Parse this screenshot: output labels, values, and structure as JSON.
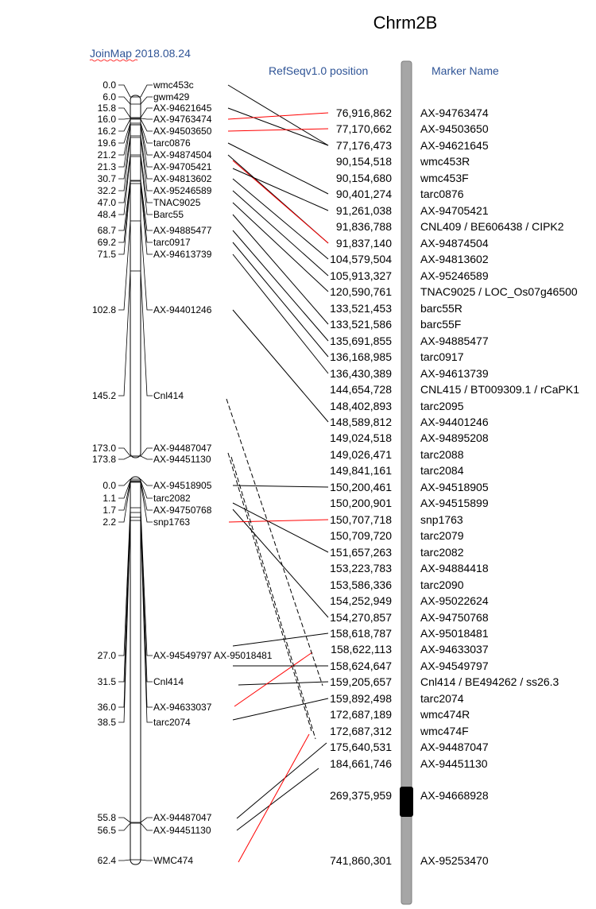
{
  "title": "Chrm2B",
  "joinmap_label": "JoinMap 2018.08.24",
  "col_refseq": "RefSeqv1.0 position",
  "col_marker": "Marker Name",
  "physical": [
    {
      "pos": "76,916,862",
      "name": "AX-94763474"
    },
    {
      "pos": "77,170,662",
      "name": "AX-94503650"
    },
    {
      "pos": "77,176,473",
      "name": "AX-94621645"
    },
    {
      "pos": "90,154,518",
      "name": "wmc453R"
    },
    {
      "pos": "90,154,680",
      "name": "wmc453F"
    },
    {
      "pos": "90,401,274",
      "name": "tarc0876"
    },
    {
      "pos": "91,261,038",
      "name": "AX-94705421"
    },
    {
      "pos": "91,836,788",
      "name": "CNL409 / BE606438 / CIPK2"
    },
    {
      "pos": "91,837,140",
      "name": "AX-94874504"
    },
    {
      "pos": "104,579,504",
      "name": "AX-94813602"
    },
    {
      "pos": "105,913,327",
      "name": "AX-95246589"
    },
    {
      "pos": "120,590,761",
      "name": "TNAC9025 / LOC_Os07g46500"
    },
    {
      "pos": "133,521,453",
      "name": "barc55R"
    },
    {
      "pos": "133,521,586",
      "name": "barc55F"
    },
    {
      "pos": "135,691,855",
      "name": "AX-94885477"
    },
    {
      "pos": "136,168,985",
      "name": "tarc0917"
    },
    {
      "pos": "136,430,389",
      "name": "AX-94613739"
    },
    {
      "pos": "144,654,728",
      "name": "CNL415 / BT009309.1 / rCaPK1"
    },
    {
      "pos": "148,402,893",
      "name": "tarc2095"
    },
    {
      "pos": "148,589,812",
      "name": "AX-94401246"
    },
    {
      "pos": "149,024,518",
      "name": "AX-94895208"
    },
    {
      "pos": "149,026,471",
      "name": "tarc2088"
    },
    {
      "pos": "149,841,161",
      "name": "tarc2084"
    },
    {
      "pos": "150,200,461",
      "name": "AX-94518905"
    },
    {
      "pos": "150,200,901",
      "name": "AX-94515899"
    },
    {
      "pos": "150,707,718",
      "name": "snp1763"
    },
    {
      "pos": "150,709,720",
      "name": "tarc2079"
    },
    {
      "pos": "151,657,263",
      "name": "tarc2082"
    },
    {
      "pos": "153,223,783",
      "name": "AX-94884418"
    },
    {
      "pos": "153,586,336",
      "name": "tarc2090"
    },
    {
      "pos": "154,252,949",
      "name": "AX-95022624"
    },
    {
      "pos": "154,270,857",
      "name": "AX-94750768"
    },
    {
      "pos": "158,618,787",
      "name": "AX-95018481"
    },
    {
      "pos": "158,622,113",
      "name": "AX-94633037"
    },
    {
      "pos": "158,624,647",
      "name": "AX-94549797"
    },
    {
      "pos": "159,205,657",
      "name": "Cnl414 / BE494262 / ss26.3"
    },
    {
      "pos": "159,892,498",
      "name": "tarc2074"
    },
    {
      "pos": "172,687,189",
      "name": "wmc474R"
    },
    {
      "pos": "172,687,312",
      "name": "wmc474F"
    },
    {
      "pos": "175,640,531",
      "name": "AX-94487047"
    },
    {
      "pos": "184,661,746",
      "name": "AX-94451130"
    },
    {
      "pos": "269,375,959",
      "name": "AX-94668928"
    },
    {
      "pos": "741,860,301",
      "name": "AX-95253470"
    }
  ],
  "genetic_upper": [
    {
      "cm": "0.0",
      "name": "wmc453c"
    },
    {
      "cm": "6.0",
      "name": "gwm429"
    },
    {
      "cm": "15.8",
      "name": "AX-94621645"
    },
    {
      "cm": "16.0",
      "name": "AX-94763474"
    },
    {
      "cm": "16.2",
      "name": "AX-94503650"
    },
    {
      "cm": "19.6",
      "name": "tarc0876"
    },
    {
      "cm": "21.2",
      "name": "AX-94874504"
    },
    {
      "cm": "21.3",
      "name": "AX-94705421"
    },
    {
      "cm": "30.7",
      "name": "AX-94813602"
    },
    {
      "cm": "32.2",
      "name": "AX-95246589"
    },
    {
      "cm": "47.0",
      "name": "TNAC9025"
    },
    {
      "cm": "48.4",
      "name": "Barc55"
    },
    {
      "cm": "68.7",
      "name": "AX-94885477"
    },
    {
      "cm": "69.2",
      "name": "tarc0917"
    },
    {
      "cm": "71.5",
      "name": "AX-94613739"
    },
    {
      "cm": "102.8",
      "name": "AX-94401246"
    },
    {
      "cm": "145.2",
      "name": "Cnl414"
    },
    {
      "cm": "173.0",
      "name": "AX-94487047"
    },
    {
      "cm": "173.8",
      "name": "AX-94451130"
    }
  ],
  "genetic_lower": [
    {
      "cm": "0.0",
      "name": "AX-94518905"
    },
    {
      "cm": "1.1",
      "name": "tarc2082"
    },
    {
      "cm": "1.7",
      "name": "AX-94750768"
    },
    {
      "cm": "2.2",
      "name": "snp1763"
    },
    {
      "cm": "27.0",
      "name": "AX-94549797 AX-95018481"
    },
    {
      "cm": "31.5",
      "name": "Cnl414"
    },
    {
      "cm": "36.0",
      "name": "AX-94633037"
    },
    {
      "cm": "38.5",
      "name": "tarc2074"
    },
    {
      "cm": "55.8",
      "name": "AX-94487047"
    },
    {
      "cm": "56.5",
      "name": "AX-94451130"
    },
    {
      "cm": "62.4",
      "name": "WMC474"
    }
  ],
  "colors": {
    "heading": "#2F5496",
    "red_link": "#FF0000",
    "chrom_bar": "#A6A6A6",
    "centromere": "#000000"
  }
}
